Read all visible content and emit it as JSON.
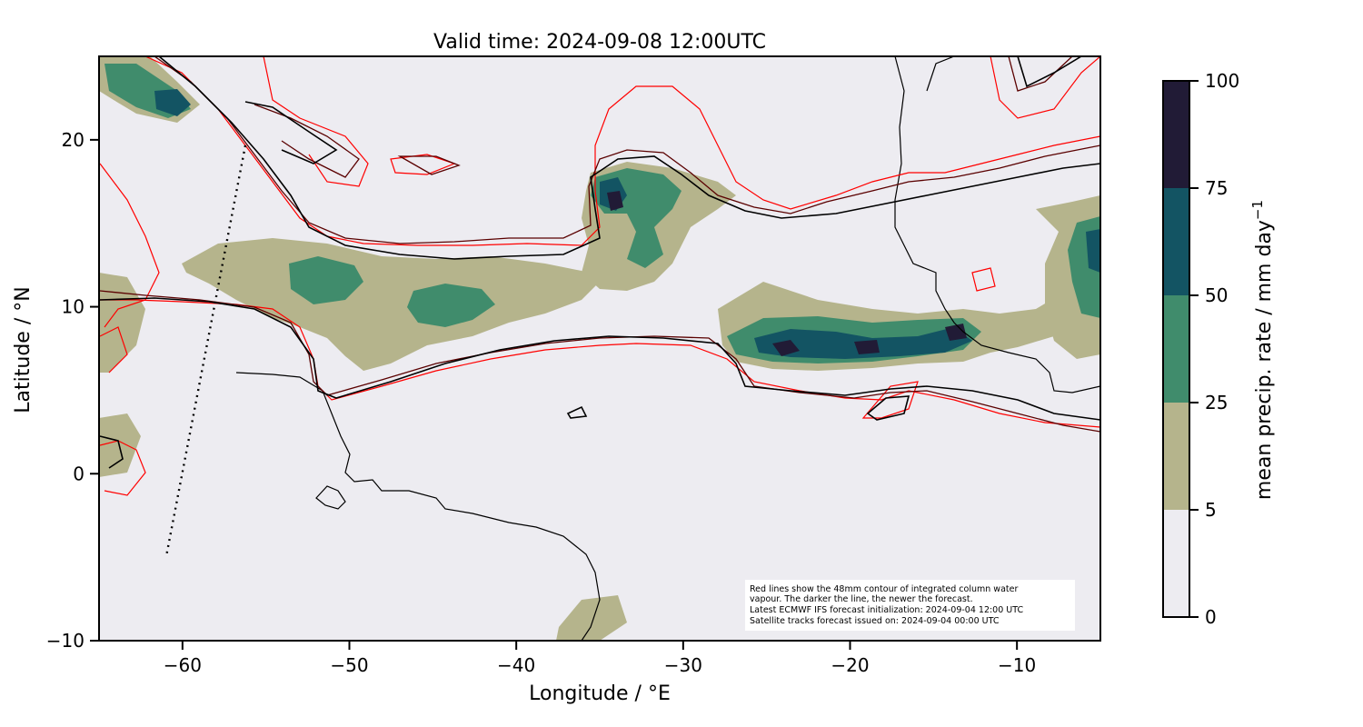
{
  "title": "Valid time: 2024-09-08 12:00UTC",
  "x_axis": {
    "label": "Longitude / °E",
    "range": [
      -65,
      -5
    ],
    "ticks": [
      {
        "value": -60,
        "label": "−60"
      },
      {
        "value": -50,
        "label": "−50"
      },
      {
        "value": -40,
        "label": "−40"
      },
      {
        "value": -30,
        "label": "−30"
      },
      {
        "value": -20,
        "label": "−20"
      },
      {
        "value": -10,
        "label": "−10"
      }
    ]
  },
  "y_axis": {
    "label": "Latitude / °N",
    "range": [
      -10,
      25
    ],
    "ticks": [
      {
        "value": 20,
        "label": "20"
      },
      {
        "value": 10,
        "label": "10"
      },
      {
        "value": 0,
        "label": "0"
      },
      {
        "value": -10,
        "label": "−10"
      }
    ]
  },
  "colorbar": {
    "label_main": "mean precip. rate / mm day",
    "label_sup": "−1",
    "levels": [
      {
        "value": 0,
        "label": "0"
      },
      {
        "value": 5,
        "label": "5"
      },
      {
        "value": 25,
        "label": "25"
      },
      {
        "value": 50,
        "label": "50"
      },
      {
        "value": 75,
        "label": "75"
      },
      {
        "value": 100,
        "label": "100"
      }
    ],
    "colors": [
      "#edecf1",
      "#b5b48c",
      "#408c6c",
      "#135463",
      "#211b36"
    ]
  },
  "note": {
    "lines": [
      "Red lines show the 48mm contour of integrated column water",
      "vapour. The darker the line, the newer the forecast.",
      "Latest ECMWF IFS forecast initialization: 2024-09-04 12:00 UTC",
      "Satellite tracks forecast issued on: 2024-09-04 00:00 UTC"
    ]
  },
  "colors": {
    "background": "#edecf1",
    "contour_newest": "#000000",
    "contour_mid": "#5a0000",
    "contour_older": "#ff0000",
    "coastline": "#000000",
    "satellite_track": "#000000"
  }
}
